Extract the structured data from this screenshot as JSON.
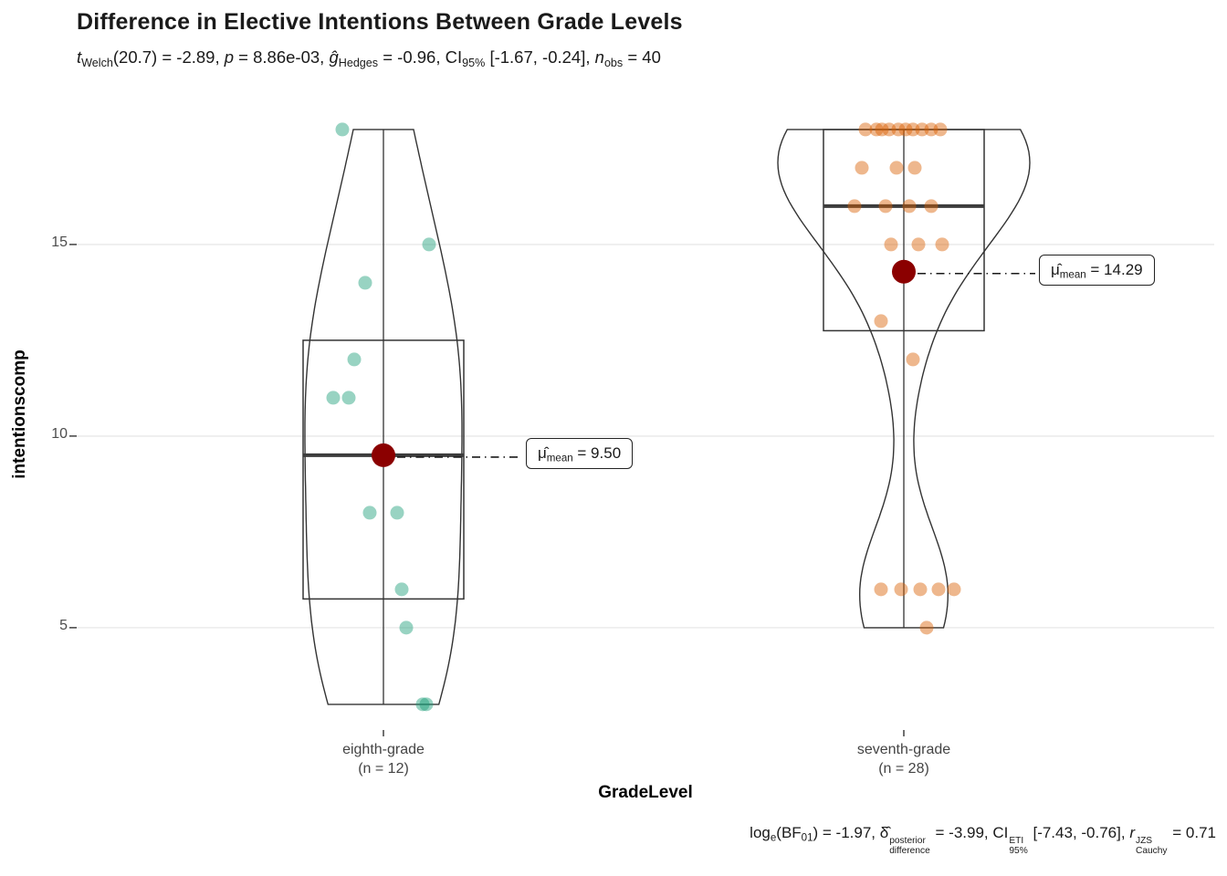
{
  "title": "Difference in Elective Intentions Between Grade Levels",
  "subtitle_parts": [
    {
      "t": "t",
      "style": "italic"
    },
    {
      "t": "Welch",
      "style": "sub"
    },
    {
      "t": "(20.7) = -2.89, "
    },
    {
      "t": "p",
      "style": "italic"
    },
    {
      "t": " = 8.86e-03, "
    },
    {
      "t": "ĝ",
      "style": "italic"
    },
    {
      "t": "Hedges",
      "style": "sub"
    },
    {
      "t": " = -0.96, CI"
    },
    {
      "t": "95%",
      "style": "sub"
    },
    {
      "t": " [-1.67, -0.24], "
    },
    {
      "t": "n",
      "style": "italic"
    },
    {
      "t": "obs",
      "style": "sub"
    },
    {
      "t": " = 40"
    }
  ],
  "caption_parts": [
    {
      "t": "log"
    },
    {
      "t": "e",
      "style": "sub"
    },
    {
      "t": "(BF"
    },
    {
      "t": "01",
      "style": "sub"
    },
    {
      "t": ") = -1.97, "
    },
    {
      "t": "δ̂"
    },
    {
      "stack": {
        "sup": "posterior",
        "sub": "difference"
      }
    },
    {
      "t": " = -3.99, CI"
    },
    {
      "stack": {
        "sup": "ETI",
        "sub": "95%"
      }
    },
    {
      "t": " [-7.43, -0.76], "
    },
    {
      "t": "r",
      "style": "italic"
    },
    {
      "stack": {
        "sup": "JZS",
        "sub": "Cauchy"
      }
    },
    {
      "t": " = 0.71"
    }
  ],
  "chart_data": {
    "type": "violin-box-scatter",
    "title": "Difference in Elective Intentions Between Grade Levels",
    "xlabel": "GradeLevel",
    "ylabel": "intentionscomp",
    "ylim": [
      2.33,
      18.57
    ],
    "yticks": [
      5,
      10,
      15
    ],
    "grid": "major-horizontal",
    "n_obs_total": 40,
    "groups": [
      {
        "category": "eighth-grade",
        "n": 12,
        "n_label": "(n = 12)",
        "values": [
          18,
          15,
          14,
          12,
          11,
          11,
          8,
          8,
          6,
          5,
          3,
          3
        ],
        "jitter_dx": [
          -45,
          50,
          -20,
          -32,
          -55,
          -38,
          -15,
          15,
          20,
          25,
          43,
          47
        ],
        "box": {
          "min": 3,
          "q1": 5.75,
          "median": 9.5,
          "q3": 12.5,
          "max": 18
        },
        "mean": 9.5,
        "mean_label_parts": [
          {
            "t": "μ̂"
          },
          {
            "t": "mean",
            "style": "sub"
          },
          {
            "t": " = 9.50"
          }
        ],
        "point_color": "#1B9E77"
      },
      {
        "category": "seventh-grade",
        "n": 28,
        "n_label": "(n = 28)",
        "values": [
          18,
          18,
          18,
          18,
          18,
          18,
          18,
          18,
          18,
          18,
          17,
          17,
          17,
          16,
          16,
          16,
          16,
          15,
          15,
          15,
          13,
          12,
          6,
          6,
          6,
          6,
          6,
          5
        ],
        "jitter_dx": [
          -42,
          -30,
          -16,
          -6,
          2,
          10,
          20,
          30,
          40,
          -24,
          -46,
          -8,
          12,
          -54,
          -20,
          6,
          30,
          -14,
          16,
          42,
          -25,
          10,
          -25,
          -3,
          18,
          38,
          55,
          25
        ],
        "box": {
          "min": 5,
          "q1": 12.75,
          "median": 16,
          "q3": 18,
          "max": 18
        },
        "mean": 14.29,
        "mean_label_parts": [
          {
            "t": "μ̂"
          },
          {
            "t": "mean",
            "style": "sub"
          },
          {
            "t": " = 14.29"
          }
        ],
        "point_color": "#D95F02"
      }
    ],
    "style": {
      "mean_point_color": "#8B0000",
      "outline_color": "#333333",
      "median_color": "#3c3c3c",
      "grid_color": "#ececec",
      "tick_color": "#333333",
      "point_alpha": 0.45
    }
  }
}
